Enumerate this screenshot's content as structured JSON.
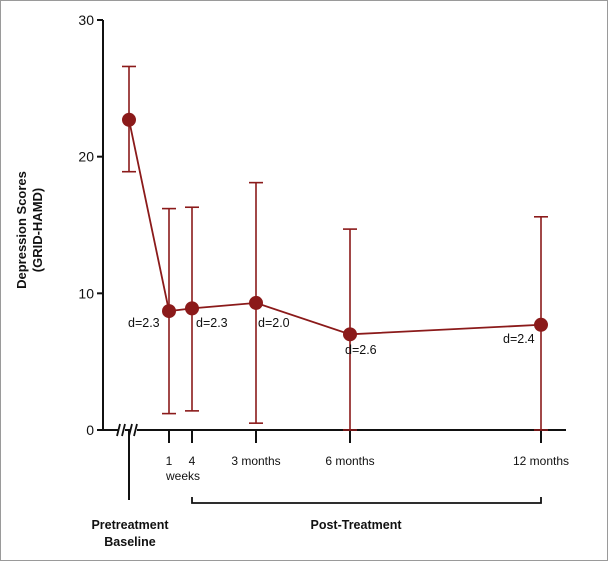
{
  "chart_data": {
    "type": "line",
    "ylabel_line1": "Depression Scores",
    "ylabel_line2": "(GRID-HAMD)",
    "ylim": [
      0,
      30
    ],
    "yticks": [
      0,
      10,
      20,
      30
    ],
    "color": "#8b1a1a",
    "points": [
      {
        "x_label": "",
        "y": 22.7,
        "err_low": 18.9,
        "err_high": 26.6,
        "d_label": ""
      },
      {
        "x_label": "1",
        "y": 8.7,
        "err_low": 1.2,
        "err_high": 16.2,
        "d_label": "d=2.3"
      },
      {
        "x_label": "4",
        "y": 8.9,
        "err_low": 1.4,
        "err_high": 16.3,
        "d_label": "d=2.3"
      },
      {
        "x_label": "3 months",
        "y": 9.3,
        "err_low": 0.5,
        "err_high": 18.1,
        "d_label": "d=2.0"
      },
      {
        "x_label": "6 months",
        "y": 7.0,
        "err_low": 0.0,
        "err_high": 14.7,
        "d_label": "d=2.6"
      },
      {
        "x_label": "12 months",
        "y": 7.7,
        "err_low": 0.0,
        "err_high": 15.6,
        "d_label": "d=2.4"
      }
    ],
    "weeks_label": "weeks",
    "group_pre_line1": "Pretreatment",
    "group_pre_line2": "Baseline",
    "group_post": "Post-Treatment"
  }
}
